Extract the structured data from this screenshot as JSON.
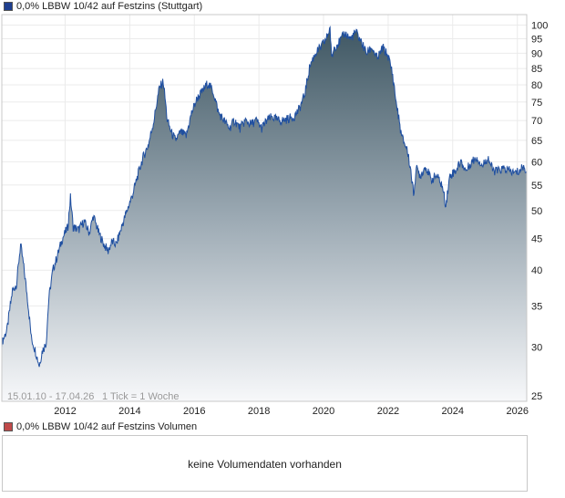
{
  "price_legend": {
    "label": "0,0% LBBW 10/42 auf Festzins (Stuttgart)",
    "color": "#1f3f8f"
  },
  "volume_legend": {
    "label": "0,0% LBBW 10/42 auf Festzins Volumen",
    "color": "#c04a4a"
  },
  "range_text": "15.01.10 - 17.04.26",
  "tick_text": "1 Tick = 1 Woche",
  "volume_message": "keine Volumendaten vorhanden",
  "chart_data": {
    "type": "area",
    "y_scale": "log",
    "ylim": [
      24.5,
      104
    ],
    "y_ticks": [
      25,
      30,
      35,
      40,
      45,
      50,
      55,
      60,
      65,
      70,
      75,
      80,
      85,
      90,
      95,
      100
    ],
    "x_ticks": [
      "2012",
      "2014",
      "2016",
      "2018",
      "2020",
      "2022",
      "2024",
      "2026"
    ],
    "x_range": [
      "2010-01-15",
      "2026-04-17"
    ],
    "line_color": "#1f4fa0",
    "grid": true,
    "points": [
      [
        "2010-01-15",
        30.5
      ],
      [
        "2010-03-15",
        32.0
      ],
      [
        "2010-05-15",
        37.0
      ],
      [
        "2010-07-01",
        38.0
      ],
      [
        "2010-08-15",
        44.0
      ],
      [
        "2010-09-15",
        41.0
      ],
      [
        "2010-11-01",
        36.0
      ],
      [
        "2010-12-15",
        31.0
      ],
      [
        "2011-02-01",
        29.5
      ],
      [
        "2011-03-15",
        28.0
      ],
      [
        "2011-04-15",
        29.5
      ],
      [
        "2011-06-01",
        30.5
      ],
      [
        "2011-07-01",
        36.0
      ],
      [
        "2011-08-15",
        40.0
      ],
      [
        "2011-10-01",
        42.0
      ],
      [
        "2011-12-01",
        45.0
      ],
      [
        "2012-02-01",
        47.0
      ],
      [
        "2012-03-01",
        52.5
      ],
      [
        "2012-04-01",
        47.0
      ],
      [
        "2012-06-01",
        46.5
      ],
      [
        "2012-08-01",
        48.0
      ],
      [
        "2012-10-01",
        46.0
      ],
      [
        "2012-11-15",
        49.0
      ],
      [
        "2013-01-15",
        46.0
      ],
      [
        "2013-03-15",
        44.0
      ],
      [
        "2013-05-01",
        43.0
      ],
      [
        "2013-06-15",
        44.5
      ],
      [
        "2013-08-01",
        44.0
      ],
      [
        "2013-10-01",
        47.0
      ],
      [
        "2013-12-01",
        50.0
      ],
      [
        "2014-02-01",
        53.0
      ],
      [
        "2014-04-01",
        57.0
      ],
      [
        "2014-06-01",
        61.0
      ],
      [
        "2014-08-01",
        64.0
      ],
      [
        "2014-10-01",
        70.0
      ],
      [
        "2014-12-01",
        79.0
      ],
      [
        "2015-01-15",
        81.0
      ],
      [
        "2015-03-01",
        70.0
      ],
      [
        "2015-04-15",
        67.0
      ],
      [
        "2015-06-01",
        65.0
      ],
      [
        "2015-08-01",
        67.0
      ],
      [
        "2015-10-01",
        66.0
      ],
      [
        "2015-12-01",
        72.0
      ],
      [
        "2016-02-01",
        76.0
      ],
      [
        "2016-04-01",
        78.0
      ],
      [
        "2016-06-01",
        80.5
      ],
      [
        "2016-08-01",
        78.0
      ],
      [
        "2016-10-01",
        72.0
      ],
      [
        "2016-12-01",
        70.0
      ],
      [
        "2017-02-01",
        68.0
      ],
      [
        "2017-04-01",
        70.0
      ],
      [
        "2017-06-01",
        68.0
      ],
      [
        "2017-08-01",
        70.0
      ],
      [
        "2017-10-01",
        69.0
      ],
      [
        "2017-12-01",
        70.0
      ],
      [
        "2018-02-01",
        68.0
      ],
      [
        "2018-04-01",
        70.0
      ],
      [
        "2018-06-01",
        71.0
      ],
      [
        "2018-08-01",
        70.0
      ],
      [
        "2018-10-01",
        70.0
      ],
      [
        "2018-12-01",
        70.5
      ],
      [
        "2019-02-01",
        71.0
      ],
      [
        "2019-04-01",
        73.0
      ],
      [
        "2019-06-01",
        77.0
      ],
      [
        "2019-08-01",
        86.0
      ],
      [
        "2019-10-01",
        90.0
      ],
      [
        "2019-12-01",
        92.0
      ],
      [
        "2020-02-01",
        95.0
      ],
      [
        "2020-03-15",
        99.0
      ],
      [
        "2020-04-01",
        88.0
      ],
      [
        "2020-05-01",
        92.0
      ],
      [
        "2020-07-01",
        94.0
      ],
      [
        "2020-09-01",
        97.0
      ],
      [
        "2020-11-01",
        95.0
      ],
      [
        "2021-01-01",
        97.5
      ],
      [
        "2021-03-01",
        94.0
      ],
      [
        "2021-05-01",
        90.0
      ],
      [
        "2021-07-01",
        92.0
      ],
      [
        "2021-09-01",
        88.0
      ],
      [
        "2021-11-01",
        92.0
      ],
      [
        "2022-01-01",
        89.0
      ],
      [
        "2022-02-15",
        84.0
      ],
      [
        "2022-04-01",
        75.0
      ],
      [
        "2022-06-01",
        66.0
      ],
      [
        "2022-08-01",
        63.0
      ],
      [
        "2022-09-15",
        58.0
      ],
      [
        "2022-10-15",
        53.0
      ],
      [
        "2022-11-15",
        58.5
      ],
      [
        "2023-01-01",
        57.0
      ],
      [
        "2023-03-01",
        59.0
      ],
      [
        "2023-05-01",
        56.0
      ],
      [
        "2023-07-01",
        57.0
      ],
      [
        "2023-09-01",
        55.0
      ],
      [
        "2023-10-15",
        51.0
      ],
      [
        "2023-12-01",
        57.0
      ],
      [
        "2024-02-01",
        58.0
      ],
      [
        "2024-04-01",
        60.0
      ],
      [
        "2024-06-01",
        58.0
      ],
      [
        "2024-08-01",
        60.0
      ],
      [
        "2024-10-01",
        61.0
      ],
      [
        "2024-12-01",
        59.0
      ],
      [
        "2025-02-01",
        61.0
      ],
      [
        "2025-04-01",
        58.0
      ],
      [
        "2025-06-01",
        58.0
      ],
      [
        "2025-08-01",
        58.5
      ],
      [
        "2025-10-01",
        58.0
      ],
      [
        "2025-12-01",
        57.5
      ],
      [
        "2026-02-01",
        58.0
      ],
      [
        "2026-03-01",
        59.0
      ],
      [
        "2026-04-17",
        58.0
      ]
    ]
  }
}
